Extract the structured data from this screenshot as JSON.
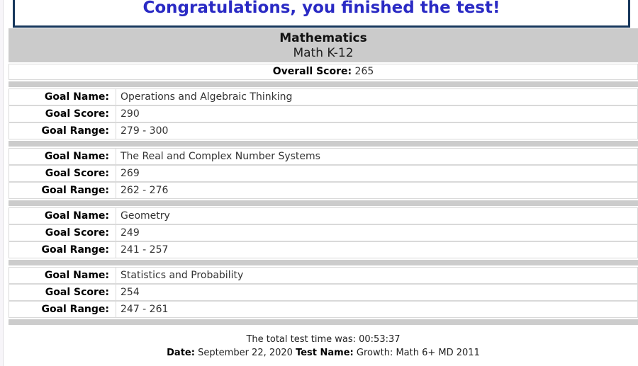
{
  "banner": {
    "text": "Congratulations, you finished the test!"
  },
  "header": {
    "subject": "Mathematics",
    "course": "Math K-12"
  },
  "overall": {
    "label": "Overall Score:",
    "value": "265"
  },
  "labels": {
    "goal_name": "Goal Name:",
    "goal_score": "Goal Score:",
    "goal_range": "Goal Range:"
  },
  "goals": [
    {
      "name": "Operations and Algebraic Thinking",
      "score": "290",
      "range": "279 - 300"
    },
    {
      "name": "The Real and Complex Number Systems",
      "score": "269",
      "range": "262 - 276"
    },
    {
      "name": "Geometry",
      "score": "249",
      "range": "241 - 257"
    },
    {
      "name": "Statistics and Probability",
      "score": "254",
      "range": "247 - 261"
    }
  ],
  "footer": {
    "time_line": "The total test time was: 00:53:37",
    "date_label": "Date:",
    "date_value": "September 22, 2020",
    "test_name_label": "Test Name:",
    "test_name_value": "Growth: Math 6+ MD 2011"
  },
  "colors": {
    "banner_text": "#2a2ac4",
    "banner_border": "#17375c",
    "band_gray": "#cbcbcb",
    "row_border": "#d9d9d9"
  }
}
